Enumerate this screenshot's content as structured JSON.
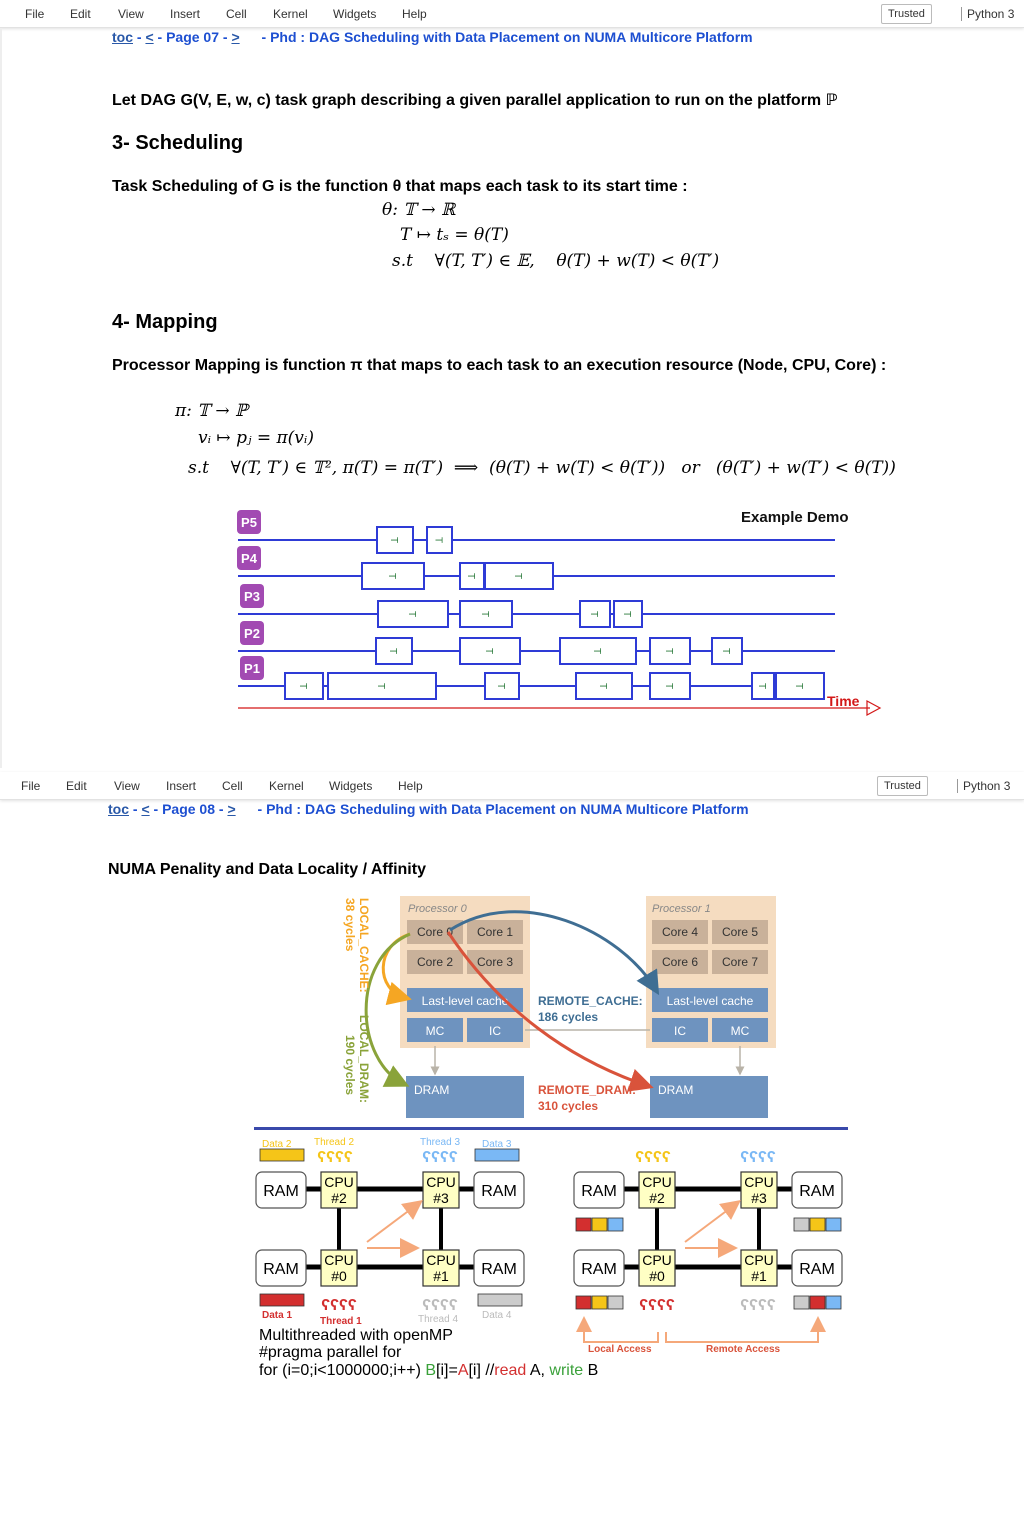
{
  "menu_items": [
    "File",
    "Edit",
    "View",
    "Insert",
    "Cell",
    "Kernel",
    "Widgets",
    "Help"
  ],
  "trusted_label": "Trusted",
  "kernel_label": "Python 3",
  "page7": {
    "nav": {
      "toc": "toc",
      "dash1": "-",
      "prev": "<",
      "page": "- Page 07 -",
      "next": ">",
      "title": "- Phd : DAG Scheduling with Data Placement on NUMA Multicore Platform"
    },
    "intro_text": "Let DAG G(V, E, w, c) task graph describing a given parallel application to run on the platform ℙ",
    "section3_title": "3- Scheduling",
    "sched_text": "Task Scheduling of G is the function θ that maps each task to its start time :",
    "sched_eq1": "θ: 𝕋 → ℝ",
    "sched_eq2": "T ↦ tₛ = θ(T)",
    "sched_eq3": "s.t    ∀(T, T′) ∈ 𝔼,    θ(T) + w(T) < θ(T′)",
    "section4_title": "4- Mapping",
    "map_text": "Processor Mapping is function π that maps to each task to an execution resource (Node, CPU, Core) :",
    "map_eq1": "π: 𝕋 → ℙ",
    "map_eq2": "vᵢ ↦ pⱼ = π(vᵢ)",
    "map_eq3": "s.t    ∀(T, T′) ∈ 𝕋², π(T) = π(T′)  ⟹  (θ(T) + w(T) < θ(T′))   or   (θ(T′) + w(T′) < θ(T))",
    "gantt": {
      "title": "Example Demo",
      "time_label": "Time",
      "processors": [
        "P5",
        "P4",
        "P3",
        "P2",
        "P1"
      ],
      "task_label": "T"
    }
  },
  "page8": {
    "nav": {
      "toc": "toc",
      "dash1": "-",
      "prev": "<",
      "page": "- Page 08 -",
      "next": ">",
      "title": "- Phd : DAG Scheduling with Data Placement on NUMA Multicore Platform"
    },
    "section_title": "NUMA Penality and Data Locality / Affinity",
    "numa": {
      "processor0": "Processor 0",
      "processor1": "Processor 1",
      "cores0": [
        "Core 0",
        "Core 1",
        "Core 2",
        "Core 3"
      ],
      "cores1": [
        "Core 4",
        "Core 5",
        "Core 6",
        "Core 7"
      ],
      "llc": "Last-level cache",
      "mc": "MC",
      "ic": "IC",
      "dram": "DRAM",
      "local_cache": "LOCAL_CACHE:",
      "local_cache_cycles": "38 cycles",
      "local_dram": "LOCAL_DRAM:",
      "local_dram_cycles": "190 cycles",
      "remote_cache": "REMOTE_CACHE:",
      "remote_cache_cycles": "186 cycles",
      "remote_dram": "REMOTE_DRAM:",
      "remote_dram_cycles": "310 cycles"
    },
    "openmp": {
      "ram": "RAM",
      "cpu": "CPU",
      "cpu_ids": [
        "#2",
        "#3",
        "#0",
        "#1"
      ],
      "threads": [
        "Thread 2",
        "Thread 3",
        "Thread 1",
        "Thread 4"
      ],
      "data": [
        "Data 2",
        "Data 3",
        "Data 1",
        "Data 4"
      ],
      "thread_glyph": "ʕʕʕʕ",
      "caption1": "Multithreaded with openMP",
      "caption2": "#pragma parallel for",
      "code_prefix": "for (i=0;i<1000000;i++) ",
      "code_b": "B",
      "code_mid1": "[i]=",
      "code_a": "A",
      "code_mid2": "[i] //",
      "code_read": "read",
      "code_mid3": " A, ",
      "code_write": "write",
      "code_end": " B",
      "local_access": "Local Access",
      "remote_access": "Remote Access"
    }
  }
}
